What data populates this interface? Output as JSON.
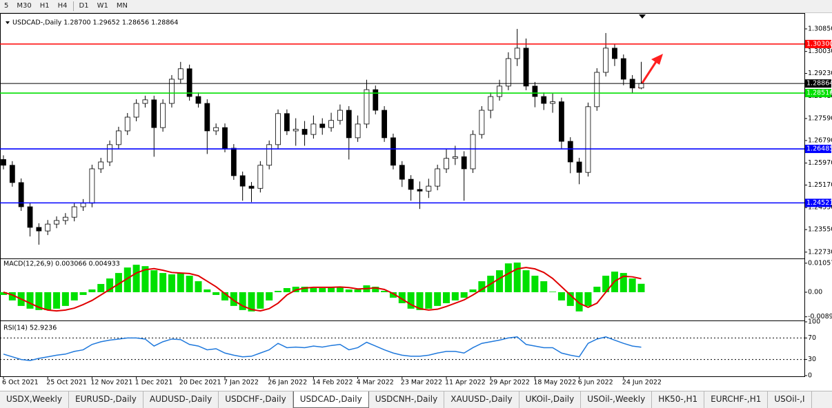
{
  "toolbar": [
    "5",
    "M30",
    "H1",
    "H4",
    "D1",
    "W1",
    "MN"
  ],
  "tabs": [
    "USDX,Weekly",
    "EURUSD-,Daily",
    "AUDUSD-,Daily",
    "USDCHF-,Daily",
    "USDCAD-,Daily",
    "USDCNH-,Daily",
    "XAUUSD-,Daily",
    "UKOil-,Daily",
    "USOil-,Weekly",
    "HK50-,H1",
    "EURCHF-,H1",
    "USOil-,I"
  ],
  "active_tab": 4,
  "chart_data": [
    {
      "type": "candlestick",
      "title": "USDCAD-,Daily  1.28700 1.29652 1.28656 1.28864",
      "up_color": "#ffffff",
      "down_color": "#000000",
      "wick_color": "#000000",
      "ylim": [
        1.225,
        1.314
      ],
      "yticks": [
        {
          "value": 1.3085,
          "label": "1.30850"
        },
        {
          "value": 1.3003,
          "label": "1.30030"
        },
        {
          "value": 1.2923,
          "label": "1.29230"
        },
        {
          "value": 1.2841,
          "label": "1.28410"
        },
        {
          "value": 1.2759,
          "label": "1.27590"
        },
        {
          "value": 1.2679,
          "label": "1.26790"
        },
        {
          "value": 1.2597,
          "label": "1.25970"
        },
        {
          "value": 1.2517,
          "label": "1.25170"
        },
        {
          "value": 1.2435,
          "label": "1.24350"
        },
        {
          "value": 1.2355,
          "label": "1.23550"
        },
        {
          "value": 1.2273,
          "label": "1.22730"
        }
      ],
      "levels": [
        {
          "value": 1.303,
          "label": "1.30300",
          "color": "#ff0000"
        },
        {
          "value": 1.28864,
          "label": "1.28864",
          "color": "#000000"
        },
        {
          "value": 1.28516,
          "label": "1.28516",
          "color": "#00e000"
        },
        {
          "value": 1.26485,
          "label": "1.26485",
          "color": "#0000ff"
        },
        {
          "value": 1.24521,
          "label": "1.24521",
          "color": "#0000ff"
        }
      ],
      "open": [
        1.261,
        1.2589,
        1.2526,
        1.2438,
        1.2363,
        1.235,
        1.2375,
        1.2388,
        1.24,
        1.2438,
        1.2451,
        1.2576,
        1.2601,
        1.2664,
        1.2714,
        1.2764,
        1.2814,
        1.2827,
        1.2726,
        1.2814,
        1.2902,
        1.294,
        1.2839,
        1.2814,
        1.2714,
        1.2726,
        1.2651,
        1.2551,
        1.2513,
        1.2505,
        1.2589,
        1.2664,
        1.2777,
        1.2714,
        1.272,
        1.2701,
        1.2739,
        1.2726,
        1.2752,
        1.2789,
        1.2689,
        1.2739,
        1.2864,
        1.2789,
        1.2689,
        1.2589,
        1.2538,
        1.2501,
        1.2495,
        1.2513,
        1.2576,
        1.2614,
        1.262,
        1.2576,
        1.2701,
        1.2789,
        1.2839,
        1.2877,
        1.2977,
        1.3015,
        1.2877,
        1.2839,
        1.2814,
        1.282,
        1.2676,
        1.2601,
        1.2563,
        1.2802,
        1.2927,
        1.3015,
        1.2977,
        1.2902,
        1.287
      ],
      "high": [
        1.2625,
        1.2604,
        1.2541,
        1.2453,
        1.2378,
        1.239,
        1.2403,
        1.2415,
        1.2453,
        1.2466,
        1.2591,
        1.2616,
        1.2679,
        1.2729,
        1.2779,
        1.2829,
        1.2842,
        1.2842,
        1.2829,
        1.2917,
        1.2965,
        1.2955,
        1.2854,
        1.2829,
        1.2741,
        1.2741,
        1.2666,
        1.2566,
        1.2528,
        1.2604,
        1.2679,
        1.2792,
        1.2792,
        1.276,
        1.275,
        1.277,
        1.276,
        1.278,
        1.281,
        1.2804,
        1.277,
        1.29,
        1.2879,
        1.2804,
        1.2704,
        1.2604,
        1.2553,
        1.253,
        1.254,
        1.2591,
        1.265,
        1.266,
        1.264,
        1.2716,
        1.2804,
        1.2854,
        1.29,
        1.3,
        1.3085,
        1.305,
        1.2892,
        1.2854,
        1.285,
        1.2835,
        1.2691,
        1.2616,
        1.2817,
        1.2942,
        1.307,
        1.303,
        1.2992,
        1.2917,
        1.29652
      ],
      "low": [
        1.2574,
        1.2511,
        1.2423,
        1.233,
        1.23,
        1.2335,
        1.236,
        1.2373,
        1.2385,
        1.2423,
        1.2436,
        1.2561,
        1.2586,
        1.2649,
        1.2699,
        1.2749,
        1.2799,
        1.262,
        1.2711,
        1.2799,
        1.2887,
        1.2824,
        1.2799,
        1.263,
        1.2699,
        1.2636,
        1.2536,
        1.246,
        1.2455,
        1.249,
        1.2574,
        1.2649,
        1.2699,
        1.266,
        1.266,
        1.2686,
        1.27,
        1.2711,
        1.2737,
        1.261,
        1.2674,
        1.2724,
        1.2774,
        1.2674,
        1.2574,
        1.251,
        1.246,
        1.243,
        1.247,
        1.2498,
        1.2561,
        1.259,
        1.246,
        1.2561,
        1.2686,
        1.276,
        1.2824,
        1.2862,
        1.295,
        1.2862,
        1.28,
        1.279,
        1.278,
        1.265,
        1.256,
        1.252,
        1.2548,
        1.2787,
        1.2912,
        1.295,
        1.288,
        1.285,
        1.28656
      ],
      "close": [
        1.2589,
        1.2526,
        1.2438,
        1.2363,
        1.235,
        1.2375,
        1.2388,
        1.24,
        1.2438,
        1.2451,
        1.2576,
        1.2601,
        1.2664,
        1.2714,
        1.2764,
        1.2814,
        1.2827,
        1.2726,
        1.2814,
        1.2902,
        1.294,
        1.2839,
        1.2814,
        1.2714,
        1.2726,
        1.2651,
        1.2551,
        1.2513,
        1.2505,
        1.2589,
        1.2664,
        1.2777,
        1.2714,
        1.272,
        1.2701,
        1.2739,
        1.2726,
        1.2752,
        1.2789,
        1.2689,
        1.2739,
        1.2864,
        1.2789,
        1.2689,
        1.2589,
        1.2538,
        1.2501,
        1.2495,
        1.2513,
        1.2576,
        1.2614,
        1.262,
        1.2576,
        1.2701,
        1.2789,
        1.2839,
        1.2877,
        1.2977,
        1.3015,
        1.2877,
        1.2839,
        1.2814,
        1.282,
        1.2676,
        1.2601,
        1.2563,
        1.2802,
        1.2927,
        1.3015,
        1.2977,
        1.2902,
        1.287,
        1.28864
      ]
    },
    {
      "type": "macd",
      "title": "MACD(12,26,9) 0.003066 0.004933",
      "ylim": [
        -0.0103,
        0.0118
      ],
      "yticks": [
        0.010578,
        {
          "value": 0,
          "label": "0.00"
        },
        -0.00896
      ],
      "hist_color": "#00e000",
      "signal_color": "#e00000",
      "histogram": [
        -0.001,
        -0.003,
        -0.005,
        -0.006,
        -0.0065,
        -0.0065,
        -0.006,
        -0.005,
        -0.003,
        -0.001,
        0.001,
        0.003,
        0.005,
        0.007,
        0.009,
        0.01,
        0.0095,
        0.008,
        0.007,
        0.0065,
        0.007,
        0.006,
        0.004,
        0.001,
        -0.001,
        -0.003,
        -0.005,
        -0.0065,
        -0.007,
        -0.006,
        -0.003,
        0.0005,
        0.0015,
        0.002,
        0.002,
        0.0015,
        0.0015,
        0.002,
        0.002,
        0.001,
        0.001,
        0.0025,
        0.002,
        0.0005,
        -0.002,
        -0.004,
        -0.006,
        -0.0065,
        -0.006,
        -0.005,
        -0.004,
        -0.003,
        -0.002,
        0.001,
        0.004,
        0.006,
        0.008,
        0.0105,
        0.0108,
        0.008,
        0.006,
        0.004,
        0.0002,
        -0.003,
        -0.005,
        -0.007,
        -0.005,
        0.002,
        0.006,
        0.0075,
        0.007,
        0.005,
        0.003066
      ],
      "signal": [
        0.0,
        -0.001,
        -0.0025,
        -0.004,
        -0.0055,
        -0.0065,
        -0.0068,
        -0.0065,
        -0.0058,
        -0.0045,
        -0.003,
        -0.001,
        0.001,
        0.003,
        0.005,
        0.007,
        0.0082,
        0.0086,
        0.008,
        0.0072,
        0.007,
        0.0068,
        0.006,
        0.004,
        0.002,
        -0.0005,
        -0.003,
        -0.005,
        -0.0063,
        -0.0068,
        -0.006,
        -0.004,
        -0.001,
        0.0008,
        0.0015,
        0.0018,
        0.0018,
        0.0018,
        0.0019,
        0.0017,
        0.0012,
        0.0013,
        0.0016,
        0.001,
        -0.0005,
        -0.0025,
        -0.0045,
        -0.006,
        -0.0065,
        -0.0062,
        -0.0052,
        -0.004,
        -0.0028,
        -0.001,
        0.001,
        0.003,
        0.005,
        0.0068,
        0.0085,
        0.009,
        0.0085,
        0.0072,
        0.005,
        0.002,
        -0.001,
        -0.004,
        -0.0055,
        -0.004,
        0.0,
        0.004,
        0.0058,
        0.0056,
        0.004933
      ]
    },
    {
      "type": "rsi",
      "title": "RSI(14) 52.9236",
      "ylim": [
        0,
        100
      ],
      "yticks": [
        100,
        70,
        30,
        0
      ],
      "levels": [
        70,
        30
      ],
      "color": "#1e78dc",
      "categories": [
        "6 Oct 2021",
        null,
        null,
        null,
        null,
        "25 Oct 2021",
        null,
        null,
        null,
        null,
        "12 Nov 2021",
        null,
        null,
        null,
        null,
        "1 Dec 2021",
        null,
        null,
        null,
        null,
        "20 Dec 2021",
        null,
        null,
        null,
        null,
        "7 Jan 2022",
        null,
        null,
        null,
        null,
        "26 Jan 2022",
        null,
        null,
        null,
        null,
        "14 Feb 2022",
        null,
        null,
        null,
        null,
        "4 Mar 2022",
        null,
        null,
        null,
        null,
        "23 Mar 2022",
        null,
        null,
        null,
        null,
        "11 Apr 2022",
        null,
        null,
        null,
        null,
        "29 Apr 2022",
        null,
        null,
        null,
        null,
        "18 May 2022",
        null,
        null,
        null,
        null,
        "6 Jun 2022",
        null,
        null,
        null,
        null,
        "24 Jun 2022",
        null,
        null
      ],
      "values": [
        40,
        35,
        30,
        28,
        32,
        35,
        38,
        40,
        45,
        48,
        58,
        63,
        66,
        68,
        70,
        70,
        68,
        55,
        63,
        68,
        67,
        58,
        55,
        48,
        50,
        42,
        38,
        35,
        36,
        42,
        48,
        60,
        52,
        53,
        52,
        55,
        53,
        56,
        58,
        48,
        52,
        62,
        55,
        48,
        42,
        38,
        36,
        36,
        38,
        42,
        45,
        45,
        42,
        52,
        60,
        63,
        66,
        70,
        72,
        58,
        55,
        52,
        52,
        42,
        38,
        35,
        60,
        68,
        72,
        66,
        60,
        55,
        52.9236
      ]
    }
  ]
}
